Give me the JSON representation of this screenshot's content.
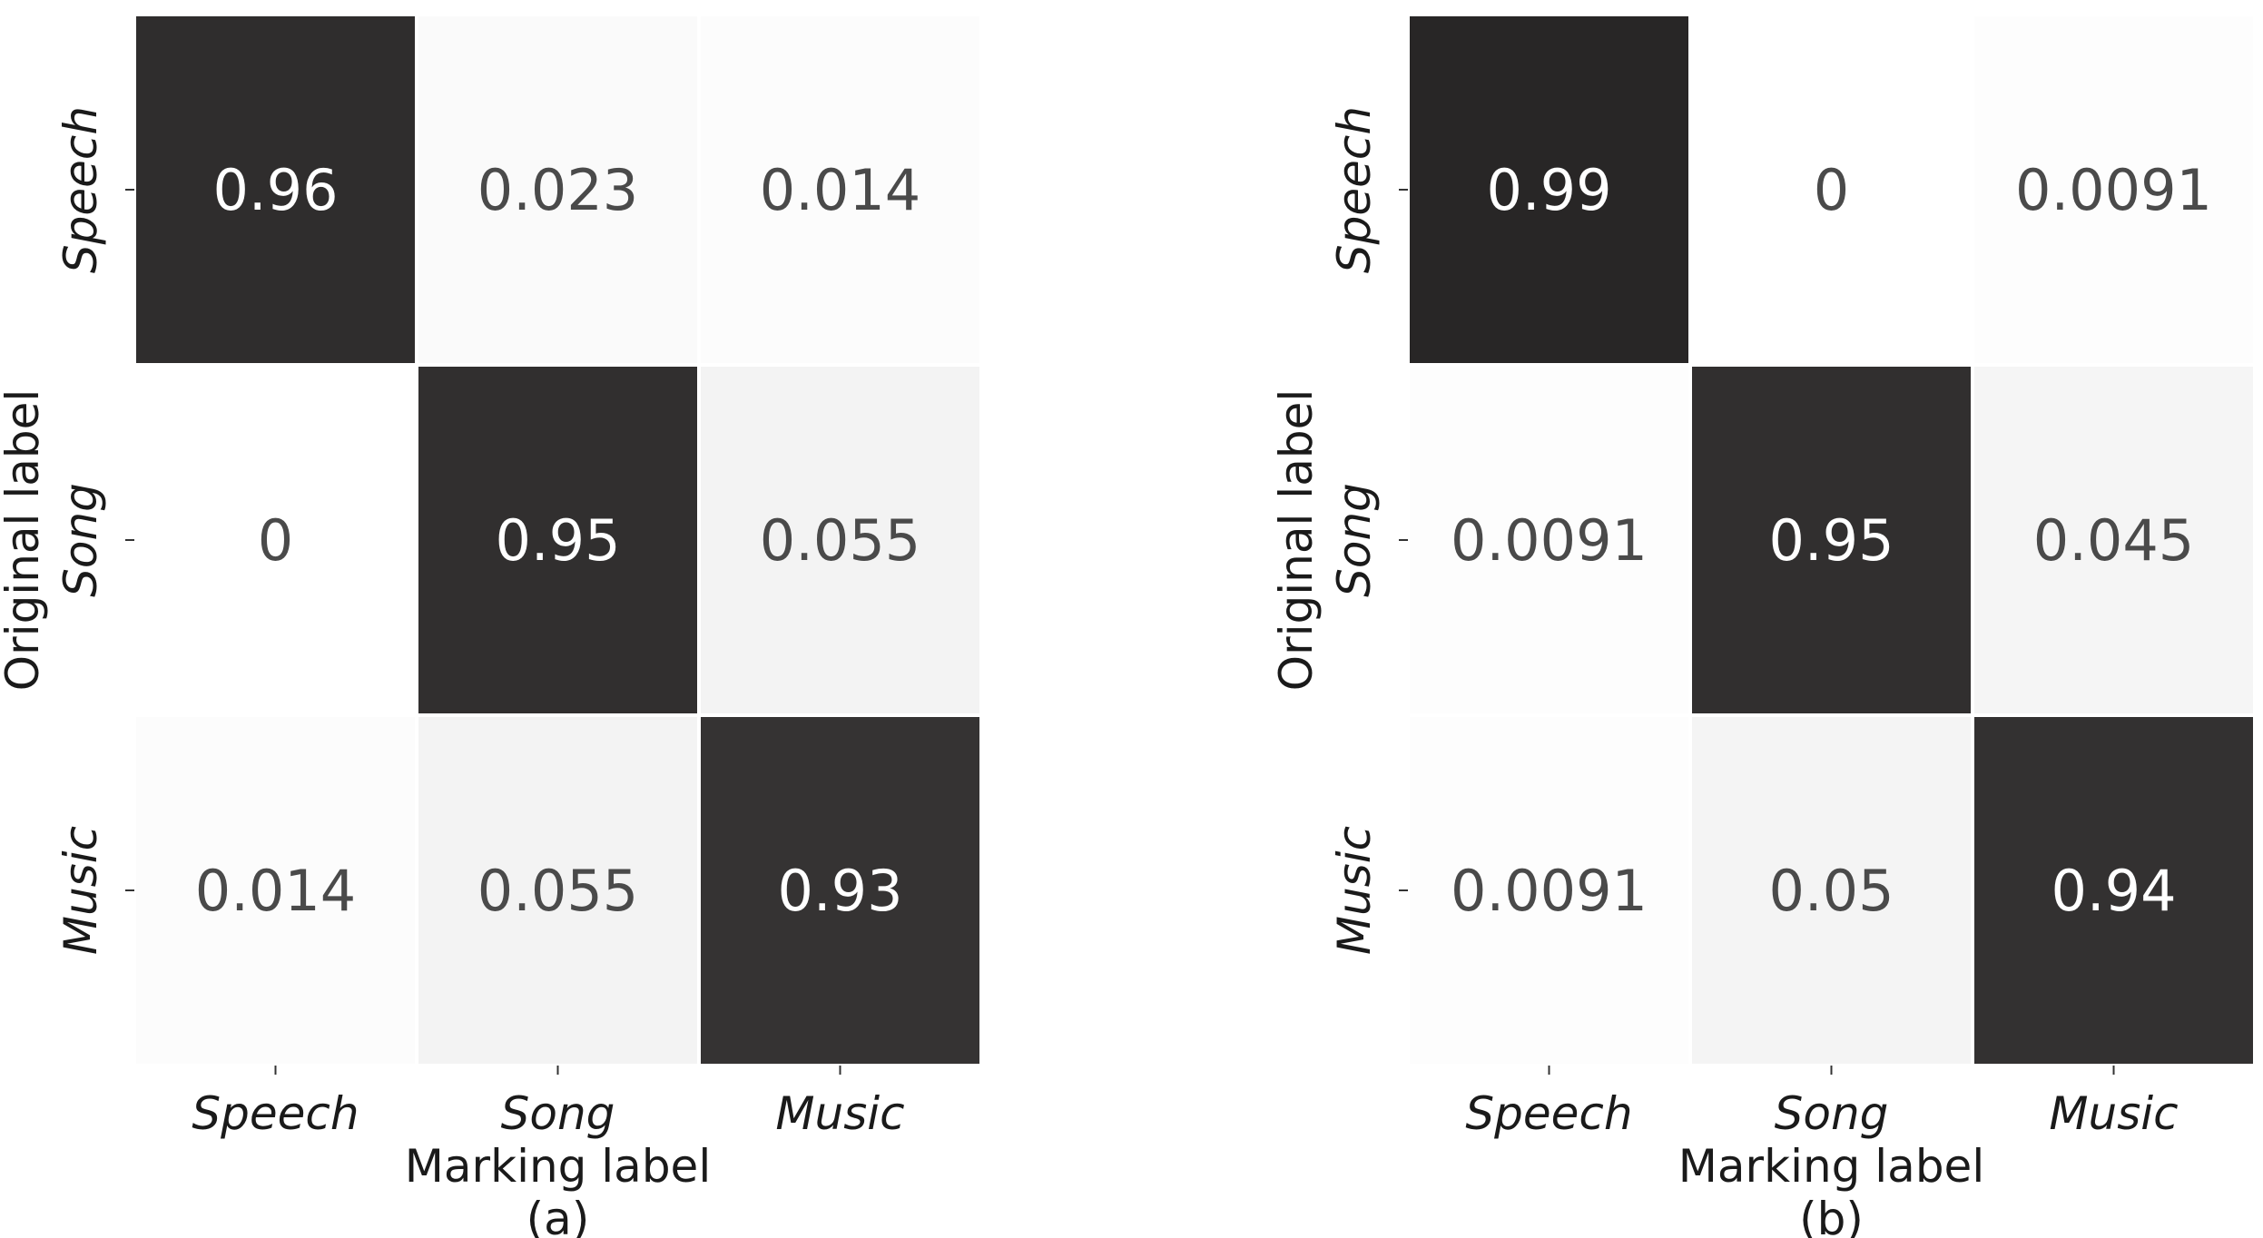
{
  "chart_data": [
    {
      "type": "heatmap",
      "caption": "(a)",
      "xlabel": "Marking label",
      "ylabel": "Original label",
      "x_categories": [
        "Speech",
        "Song",
        "Music"
      ],
      "y_categories": [
        "Speech",
        "Song",
        "Music"
      ],
      "cell_labels": [
        [
          "0.96",
          "0.023",
          "0.014"
        ],
        [
          "0",
          "0.95",
          "0.055"
        ],
        [
          "0.014",
          "0.055",
          "0.93"
        ]
      ],
      "values": [
        [
          0.96,
          0.023,
          0.014
        ],
        [
          0,
          0.95,
          0.055
        ],
        [
          0.014,
          0.055,
          0.93
        ]
      ],
      "colormap": "grayscale (white = 0, near-black = 1)",
      "colorbar": false
    },
    {
      "type": "heatmap",
      "caption": "(b)",
      "xlabel": "Marking label",
      "ylabel": "Original label",
      "x_categories": [
        "Speech",
        "Song",
        "Music"
      ],
      "y_categories": [
        "Speech",
        "Song",
        "Music"
      ],
      "cell_labels": [
        [
          "0.99",
          "0",
          "0.0091"
        ],
        [
          "0.0091",
          "0.95",
          "0.045"
        ],
        [
          "0.0091",
          "0.05",
          "0.94"
        ]
      ],
      "values": [
        [
          0.99,
          0,
          0.0091
        ],
        [
          0.0091,
          0.95,
          0.045
        ],
        [
          0.0091,
          0.05,
          0.94
        ]
      ],
      "colormap": "grayscale (white = 0, near-black = 1)",
      "colorbar": false
    }
  ]
}
